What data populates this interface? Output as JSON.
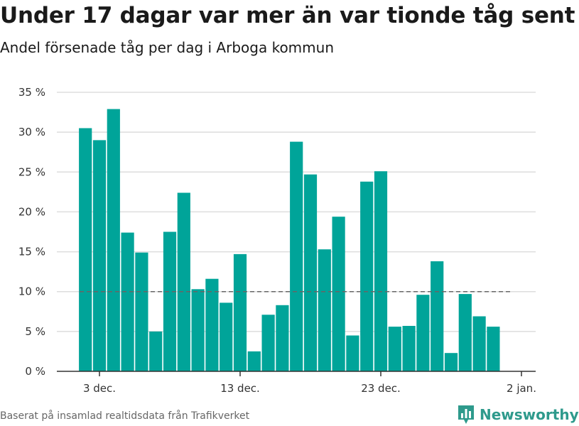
{
  "title": "Under 17 dagar var mer än var tionde tåg sent",
  "subtitle": "Andel försenade tåg per dag i Arboga kommun",
  "footer": "Baserat på insamlad realtidsdata från Trafikverket",
  "brand": "Newsworthy",
  "colors": {
    "bar": "#00a499",
    "grid": "#dddddd",
    "axis": "#333333",
    "reference_line": "#666666",
    "brand": "#2e9a8c"
  },
  "icons": {
    "logo": "newsworthy-bar-chart-icon"
  },
  "chart_data": {
    "type": "bar",
    "unit": "%",
    "ylim": [
      0,
      35
    ],
    "yticks": [
      0,
      5,
      10,
      15,
      20,
      25,
      30,
      35
    ],
    "ytick_labels": [
      "0 %",
      "5 %",
      "10 %",
      "15 %",
      "20 %",
      "25 %",
      "30 %",
      "35 %"
    ],
    "x_start": "2019-12-01",
    "x_end": "2020-01-02",
    "xticks": [
      "2019-12-03",
      "2019-12-13",
      "2019-12-23",
      "2020-01-02"
    ],
    "xtick_labels": [
      "3 dec.",
      "13 dec.",
      "23 dec.",
      "2 jan."
    ],
    "grid": true,
    "legend": "none",
    "reference_line": 10,
    "series": [
      {
        "x": [
          "2019-12-02",
          "2019-12-03",
          "2019-12-04",
          "2019-12-05",
          "2019-12-06",
          "2019-12-07",
          "2019-12-08",
          "2019-12-09",
          "2019-12-10",
          "2019-12-11",
          "2019-12-12",
          "2019-12-13",
          "2019-12-14",
          "2019-12-15",
          "2019-12-16",
          "2019-12-17",
          "2019-12-18",
          "2019-12-19",
          "2019-12-20",
          "2019-12-21",
          "2019-12-22",
          "2019-12-23",
          "2019-12-24",
          "2019-12-25",
          "2019-12-26",
          "2019-12-27",
          "2019-12-28",
          "2019-12-29",
          "2019-12-30",
          "2019-12-31"
        ],
        "values": [
          30.5,
          29.0,
          32.9,
          17.4,
          14.9,
          5.0,
          17.5,
          22.4,
          10.3,
          11.6,
          8.6,
          14.7,
          2.5,
          7.1,
          8.3,
          28.8,
          24.7,
          15.3,
          19.4,
          4.5,
          23.8,
          25.1,
          5.6,
          5.7,
          9.6,
          13.8,
          2.3,
          9.7,
          6.9,
          5.6
        ]
      }
    ]
  }
}
